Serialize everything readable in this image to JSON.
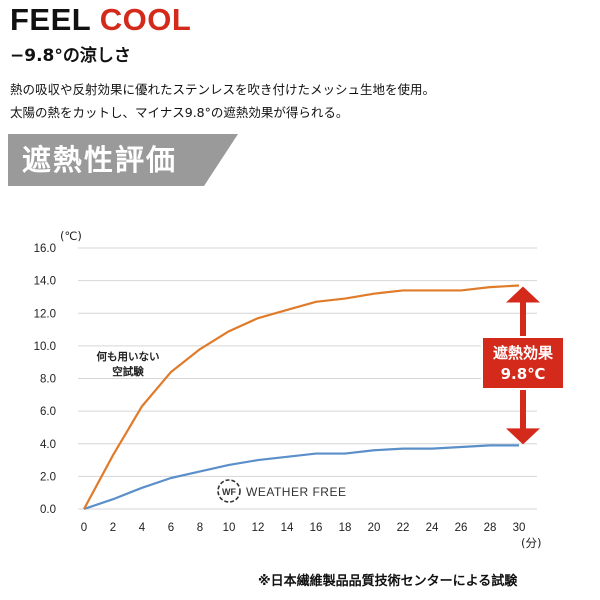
{
  "header": {
    "title_part1": "FEEL",
    "title_part2": "COOL",
    "subtitle": "−9.8°の涼しさ",
    "description_line1": "熱の吸収や反射効果に優れたステンレスを吹き付けたメッシュ生地を使用。",
    "description_line2": "太陽の熱をカットし、マイナス9.8°の遮熱効果が得られる。"
  },
  "banner": {
    "label": "遮熱性評価"
  },
  "colors": {
    "accent_red": "#d42a1c",
    "control_line": "#e07b2a",
    "fabric_line": "#5b8fc9",
    "banner_gray": "#9a9a9a"
  },
  "chart_data": {
    "type": "line",
    "y_unit": "(℃)",
    "x_unit": "(分)",
    "xlim": [
      0,
      30
    ],
    "ylim": [
      0,
      16
    ],
    "x_ticks": [
      0,
      2,
      4,
      6,
      8,
      10,
      12,
      14,
      16,
      18,
      20,
      22,
      24,
      26,
      28,
      30
    ],
    "y_ticks": [
      "0.0",
      "2.0",
      "4.0",
      "6.0",
      "8.0",
      "10.0",
      "12.0",
      "14.0",
      "16.0"
    ],
    "grid": true,
    "series": [
      {
        "key": "control",
        "color": "#e07b2a",
        "x": [
          0,
          2,
          4,
          6,
          8,
          10,
          12,
          14,
          16,
          18,
          20,
          22,
          24,
          26,
          28,
          30
        ],
        "y": [
          0.0,
          3.3,
          6.3,
          8.4,
          9.8,
          10.9,
          11.7,
          12.2,
          12.7,
          12.9,
          13.2,
          13.4,
          13.4,
          13.4,
          13.6,
          13.7
        ]
      },
      {
        "key": "fabric",
        "color": "#5b8fc9",
        "x": [
          0,
          2,
          4,
          6,
          8,
          10,
          12,
          14,
          16,
          18,
          20,
          22,
          24,
          26,
          28,
          30
        ],
        "y": [
          0.0,
          0.6,
          1.3,
          1.9,
          2.3,
          2.7,
          3.0,
          3.2,
          3.4,
          3.4,
          3.6,
          3.7,
          3.7,
          3.8,
          3.9,
          3.9
        ]
      }
    ],
    "annotations": {
      "control_label_line1": "何も用いない",
      "control_label_line2": "空試験",
      "difference_label_line1": "遮熱効果",
      "difference_label_line2": "9.8℃",
      "difference_value": 9.8,
      "logo_text": "WEATHER FREE",
      "logo_badge": "WF"
    }
  },
  "footer": {
    "note": "※日本繊維製品品質技術センターによる試験"
  }
}
